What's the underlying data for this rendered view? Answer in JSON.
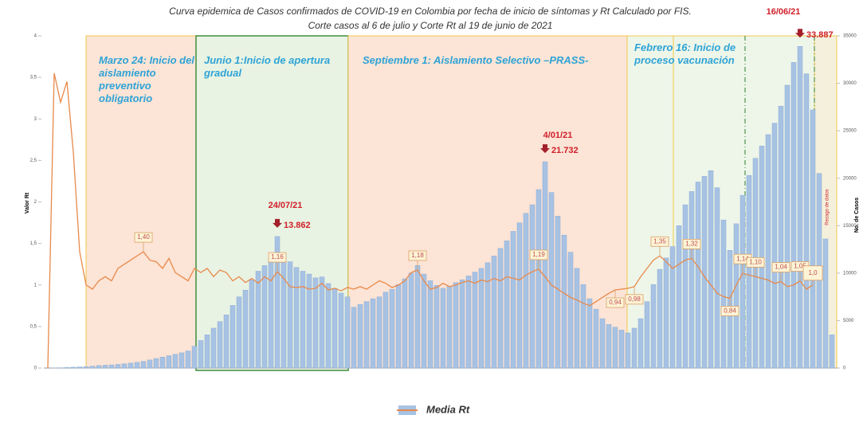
{
  "chart_data": {
    "type": "combo",
    "title": "Curva epidemica de Casos confirmados de COVID-19 en Colombia por fecha de inicio de síntomas y Rt Calculado por FIS.",
    "subtitle": "Corte casos al 6 de julio y Corte Rt al 19 de junio de 2021",
    "y_label": "Valor Rt",
    "y2_label": "No. de Casos",
    "ylim": [
      0,
      4
    ],
    "yticks": [
      0,
      {
        "value": 0.5,
        "label": "0,5"
      },
      1,
      {
        "value": 1.5,
        "label": "1,5"
      },
      2,
      {
        "value": 2.5,
        "label": "2,5"
      },
      3,
      {
        "value": 3.5,
        "label": "3,5"
      },
      4
    ],
    "y2lim": [
      0,
      35000
    ],
    "y2ticks": [
      0,
      5000,
      10000,
      15000,
      20000,
      25000,
      30000,
      35000
    ],
    "annotations": [
      "Marzo 24: Inicio del aislamiento preventivo obligatorio",
      "Junio 1:Inicio de apertura gradual",
      "Septiembre 1: Aislamiento Selectivo –PRASS-",
      "Febrero 16: Inicio de proceso vacunación",
      "24/07/21",
      "4/01/21",
      "16/06/21",
      "Rezago de datos"
    ],
    "series": [
      {
        "color": "#a7c2e3",
        "axis": "y2",
        "kind": "bar",
        "values": [
          0,
          10,
          30,
          60,
          90,
          120,
          150,
          200,
          260,
          300,
          330,
          380,
          450,
          520,
          600,
          700,
          850,
          1000,
          1150,
          1300,
          1450,
          1600,
          1800,
          2300,
          2900,
          3500,
          4200,
          4900,
          5600,
          6600,
          7500,
          8200,
          9300,
          10200,
          10800,
          11600,
          13862,
          12000,
          11200,
          10600,
          10200,
          9900,
          9500,
          9600,
          8900,
          8400,
          7900,
          7500,
          6400,
          6700,
          7000,
          7300,
          7500,
          8000,
          8300,
          8800,
          9400,
          10000,
          10800,
          9900,
          9200,
          8700,
          8400,
          8600,
          9000,
          9300,
          9700,
          10100,
          10500,
          11100,
          11800,
          12600,
          13400,
          14400,
          15300,
          16300,
          17200,
          18800,
          21732,
          18500,
          16000,
          14000,
          12200,
          10500,
          8800,
          7300,
          6200,
          5200,
          4600,
          4300,
          4000,
          3700,
          4200,
          5200,
          7000,
          8800,
          10400,
          11600,
          12800,
          15000,
          17200,
          18600,
          19600,
          20200,
          20800,
          19000,
          15600,
          12400,
          15200,
          18200,
          20300,
          22100,
          23400,
          24600,
          25800,
          27600,
          29800,
          32200,
          33887,
          31000,
          27200,
          20500,
          13600,
          3500
        ],
        "value_labels": [
          null,
          null,
          null,
          null,
          null,
          null,
          null,
          null,
          null,
          null,
          null,
          null,
          null,
          null,
          null,
          null,
          null,
          null,
          null,
          null,
          null,
          null,
          null,
          null,
          null,
          null,
          null,
          null,
          null,
          null,
          null,
          null,
          null,
          null,
          null,
          null,
          "13.862",
          null,
          null,
          null,
          null,
          null,
          null,
          null,
          null,
          null,
          null,
          null,
          null,
          null,
          null,
          null,
          null,
          null,
          null,
          null,
          null,
          null,
          null,
          null,
          null,
          null,
          null,
          null,
          null,
          null,
          null,
          null,
          null,
          null,
          null,
          null,
          null,
          null,
          null,
          null,
          null,
          null,
          "21.732",
          null,
          null,
          null,
          null,
          null,
          null,
          null,
          null,
          null,
          null,
          null,
          null,
          null,
          null,
          null,
          null,
          null,
          null,
          null,
          null,
          null,
          null,
          null,
          null,
          null,
          null,
          null,
          null,
          null,
          null,
          null,
          null,
          null,
          null,
          null,
          null,
          null,
          null,
          null,
          "33.887",
          null,
          null,
          null,
          null,
          null
        ]
      },
      {
        "name": "Media Rt",
        "color": "#e8894a",
        "kind": "line",
        "values": [
          0,
          3.55,
          3.2,
          3.45,
          2.6,
          1.4,
          1.0,
          0.95,
          1.05,
          1.1,
          1.05,
          1.2,
          1.25,
          1.3,
          1.35,
          1.4,
          1.3,
          1.28,
          1.2,
          1.32,
          1.15,
          1.1,
          1.05,
          1.2,
          1.15,
          1.2,
          1.1,
          1.18,
          1.15,
          1.05,
          1.1,
          1.03,
          1.08,
          1.02,
          1.1,
          1.05,
          1.16,
          1.08,
          0.98,
          0.97,
          0.98,
          0.95,
          0.96,
          1.02,
          0.94,
          0.96,
          0.93,
          0.97,
          0.95,
          0.98,
          0.95,
          1.0,
          1.05,
          1.02,
          0.97,
          1.0,
          1.05,
          1.15,
          1.18,
          1.05,
          0.95,
          0.97,
          1.02,
          0.98,
          1.0,
          1.03,
          1.05,
          1.02,
          1.06,
          1.04,
          1.08,
          1.05,
          1.1,
          1.08,
          1.06,
          1.12,
          1.16,
          1.19,
          1.1,
          1.0,
          0.95,
          0.9,
          0.85,
          0.82,
          0.78,
          0.75,
          0.8,
          0.85,
          0.9,
          0.94,
          0.95,
          0.96,
          0.98,
          1.1,
          1.2,
          1.3,
          1.35,
          1.28,
          1.2,
          1.25,
          1.3,
          1.32,
          1.22,
          1.1,
          1.0,
          0.9,
          0.86,
          0.84,
          1.0,
          1.14,
          1.12,
          1.1,
          1.08,
          1.06,
          1.02,
          1.04,
          0.98,
          1.0,
          1.05,
          0.95,
          1.0,
          null,
          null,
          null
        ],
        "value_labels": [
          null,
          null,
          null,
          null,
          null,
          null,
          null,
          null,
          null,
          null,
          null,
          null,
          null,
          null,
          null,
          "1,40",
          null,
          null,
          null,
          null,
          null,
          null,
          null,
          null,
          null,
          null,
          null,
          null,
          null,
          null,
          null,
          null,
          null,
          null,
          null,
          null,
          "1,16",
          null,
          null,
          null,
          null,
          null,
          null,
          null,
          null,
          null,
          null,
          null,
          null,
          null,
          null,
          null,
          null,
          null,
          null,
          null,
          null,
          null,
          "1,18",
          null,
          null,
          null,
          null,
          null,
          null,
          null,
          null,
          null,
          null,
          null,
          null,
          null,
          null,
          null,
          null,
          null,
          null,
          "1,19",
          null,
          null,
          null,
          null,
          null,
          null,
          null,
          null,
          null,
          null,
          null,
          "0,94",
          null,
          null,
          "0,98",
          null,
          null,
          null,
          "1,35",
          null,
          null,
          null,
          null,
          "1,32",
          null,
          null,
          null,
          null,
          null,
          "0,84",
          null,
          "1,14",
          null,
          "1,10",
          null,
          null,
          null,
          "1,04",
          null,
          null,
          "1,05",
          null,
          "1,0",
          null,
          null,
          null
        ]
      }
    ]
  }
}
